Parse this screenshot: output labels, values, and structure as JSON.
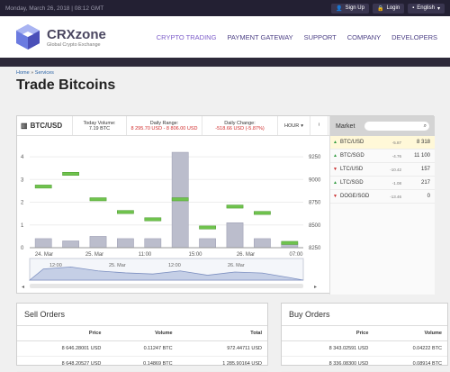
{
  "topbar": {
    "date": "Monday, March 26, 2018",
    "time": "08:12 GMT",
    "signup": "Sign Up",
    "login": "Login",
    "lang": "English"
  },
  "logo": {
    "name": "CRXzone",
    "tagline": "Global Crypto Exchange"
  },
  "nav": [
    "CRYPTO TRADING",
    "PAYMENT GATEWAY",
    "SUPPORT",
    "COMPANY",
    "DEVELOPERS"
  ],
  "breadcrumb": {
    "home": "Home",
    "services": "Services"
  },
  "page_title": "Trade Bitcoins",
  "stats": {
    "pair": "BTC/USD",
    "volume_label": "Today Volume:",
    "volume": "7.19 BTC",
    "range_label": "Daily Range:",
    "range": "8 295.70 USD - 8 806.00 USD",
    "change_label": "Daily Change:",
    "change": "-518.66 USD (-5.87%)",
    "interval": "HOUR"
  },
  "chart_data": {
    "type": "bar",
    "y_left_ticks": [
      "0",
      "1",
      "2",
      "3",
      "4"
    ],
    "y_right_ticks": [
      "8250",
      "8500",
      "8750",
      "9000",
      "9250"
    ],
    "x_ticks": [
      "24. Mar",
      "25. Mar",
      "11:00",
      "15:00",
      "26. Mar",
      "07:00"
    ],
    "volume": [
      0.4,
      0.3,
      0.5,
      0.4,
      0.4,
      4.2,
      0.4,
      1.1,
      0.4,
      0.2
    ],
    "price": [
      8920,
      9060,
      8780,
      8640,
      8560,
      8780,
      8470,
      8700,
      8630,
      8300
    ],
    "navigator_labels": [
      "12:00",
      "25. Mar",
      "12:00",
      "26. Mar"
    ]
  },
  "market": {
    "title": "Market",
    "rows": [
      {
        "dir": "up",
        "pair": "BTC/USD",
        "change": "-5.87",
        "price": "8 318",
        "hl": true
      },
      {
        "dir": "up",
        "pair": "BTC/SGD",
        "change": "-4.76",
        "price": "11 100",
        "hl": false
      },
      {
        "dir": "down",
        "pair": "LTC/USD",
        "change": "-10.42",
        "price": "157",
        "hl": false
      },
      {
        "dir": "up",
        "pair": "LTC/SGD",
        "change": "-1.08",
        "price": "217",
        "hl": false
      },
      {
        "dir": "down",
        "pair": "DOGE/SGD",
        "change": "-13.46",
        "price": "0",
        "hl": false
      }
    ]
  },
  "sell": {
    "title": "Sell Orders",
    "headers": [
      "Price",
      "Volume",
      "Total"
    ],
    "rows": [
      [
        "8 646.28001 USD",
        "0.11247 BTC",
        "972.44711 USD"
      ],
      [
        "8 648.20527 USD",
        "0.14869 BTC",
        "1 285.90164 USD"
      ]
    ]
  },
  "buy": {
    "title": "Buy Orders",
    "headers": [
      "Price",
      "Volume"
    ],
    "rows": [
      [
        "8 343.02591 USD",
        "0.04222 BTC"
      ],
      [
        "8 336.08300 USD",
        "0.08914 BTC"
      ]
    ]
  }
}
